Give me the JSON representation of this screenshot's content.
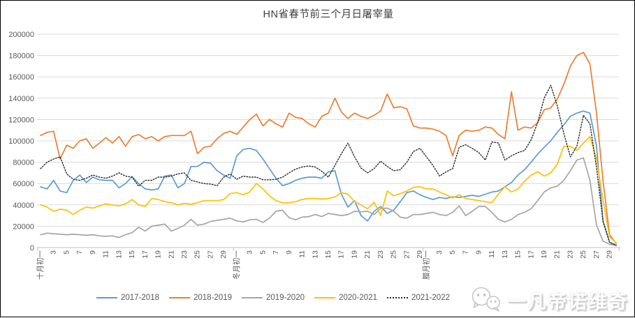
{
  "chart_data": {
    "type": "line",
    "title": "HN省春节前三个月日屠宰量",
    "grid": "horizontal",
    "legend_position": "bottom",
    "y_axis": {
      "min": 0,
      "max": 200000,
      "step": 20000,
      "tick_labels": [
        "0",
        "20000",
        "40000",
        "60000",
        "80000",
        "100000",
        "120000",
        "140000",
        "160000",
        "180000",
        "200000"
      ]
    },
    "x_axis": {
      "months": [
        {
          "first_label": "十月初一",
          "days": 30
        },
        {
          "first_label": "冬月初一",
          "days": 29
        },
        {
          "first_label": "腊月初一",
          "days": 30
        }
      ],
      "tick_positions": [
        0,
        2,
        4,
        6,
        8,
        10,
        12,
        14,
        16,
        18,
        20,
        22,
        24,
        26,
        28,
        30,
        32,
        34,
        36,
        38,
        40,
        42,
        44,
        46,
        48,
        50,
        52,
        54,
        56,
        58,
        59,
        61,
        63,
        65,
        67,
        69,
        71,
        73,
        75,
        77,
        79,
        81,
        83,
        85,
        87
      ],
      "tick_labels": [
        "十月初一",
        "3",
        "5",
        "7",
        "9",
        "11",
        "13",
        "15",
        "17",
        "19",
        "21",
        "23",
        "25",
        "27",
        "29",
        "冬月初一",
        "3",
        "5",
        "7",
        "9",
        "11",
        "13",
        "15",
        "17",
        "19",
        "21",
        "23",
        "25",
        "27",
        "29",
        "腊月初一",
        "3",
        "5",
        "7",
        "9",
        "11",
        "13",
        "15",
        "17",
        "19",
        "21",
        "23",
        "25",
        "27",
        "29"
      ]
    },
    "series": [
      {
        "name": "2017-2018",
        "color": "#5B9BD5",
        "style": "solid",
        "values": [
          57000,
          55000,
          63000,
          53000,
          51500,
          63000,
          68000,
          61000,
          66000,
          63500,
          63000,
          63000,
          56000,
          60000,
          66500,
          60000,
          55000,
          54000,
          55000,
          67000,
          68000,
          56000,
          60000,
          76000,
          76000,
          80000,
          79000,
          72000,
          68000,
          65000,
          86000,
          92000,
          93000,
          91000,
          83000,
          74000,
          65000,
          58000,
          60000,
          63000,
          65000,
          66000,
          66000,
          65000,
          71000,
          72000,
          50000,
          38000,
          44000,
          30000,
          25000,
          34000,
          38500,
          32000,
          35000,
          43000,
          51500,
          53000,
          49500,
          47000,
          45000,
          47000,
          46000,
          47500,
          47000,
          48000,
          49000,
          48000,
          50000,
          52000,
          53000,
          57000,
          61000,
          68000,
          73000,
          80000,
          87500,
          94000,
          100000,
          108000,
          115000,
          123000,
          126000,
          128000,
          126000,
          95000,
          25000,
          5000,
          2500
        ]
      },
      {
        "name": "2018-2019",
        "color": "#ED7D31",
        "style": "solid",
        "values": [
          105000,
          108000,
          109000,
          83000,
          96000,
          93000,
          100000,
          102000,
          93000,
          98000,
          103000,
          98000,
          104000,
          95000,
          104000,
          106000,
          102000,
          104000,
          100000,
          104000,
          105000,
          105000,
          105000,
          109000,
          88000,
          94000,
          95000,
          102000,
          107000,
          109000,
          106000,
          113000,
          120000,
          125000,
          114000,
          120000,
          116000,
          113000,
          126000,
          122000,
          121000,
          116000,
          113000,
          123000,
          126000,
          140000,
          127000,
          121000,
          126000,
          123000,
          121000,
          124000,
          128000,
          144000,
          131000,
          132000,
          130000,
          114000,
          112000,
          112000,
          111000,
          109000,
          105000,
          86000,
          105000,
          110000,
          109000,
          110000,
          113000,
          112000,
          106000,
          102000,
          146000,
          110000,
          113000,
          112000,
          117000,
          129000,
          131000,
          139000,
          153000,
          170000,
          180000,
          183000,
          172000,
          126000,
          62000,
          12000,
          4000
        ]
      },
      {
        "name": "2019-2020",
        "color": "#A5A5A5",
        "style": "solid",
        "values": [
          12000,
          13500,
          13000,
          12500,
          12000,
          12500,
          12000,
          11500,
          12000,
          11000,
          10500,
          11000,
          9500,
          12000,
          14000,
          19000,
          15500,
          20000,
          21000,
          22000,
          15500,
          18000,
          21000,
          26500,
          21000,
          22000,
          24500,
          25500,
          26500,
          27500,
          25000,
          24000,
          26000,
          26500,
          23500,
          27500,
          34000,
          35000,
          28000,
          26000,
          28500,
          29000,
          31000,
          29000,
          32000,
          31000,
          30000,
          31000,
          34000,
          33500,
          34000,
          31000,
          36500,
          37000,
          34000,
          28500,
          27500,
          31000,
          31000,
          32000,
          33000,
          31000,
          30000,
          33000,
          39000,
          30000,
          34000,
          38500,
          38500,
          33000,
          26500,
          24000,
          26500,
          31000,
          33000,
          36500,
          44000,
          52000,
          56000,
          57500,
          63000,
          72000,
          82000,
          84000,
          63000,
          21000,
          6000,
          3000,
          2000
        ]
      },
      {
        "name": "2020-2021",
        "color": "#FFC000",
        "style": "solid",
        "values": [
          40000,
          38000,
          34000,
          36000,
          35000,
          31000,
          35000,
          38000,
          37000,
          39000,
          41000,
          40000,
          39000,
          41000,
          45000,
          40000,
          38500,
          46000,
          45000,
          43000,
          42000,
          40000,
          41500,
          40500,
          42000,
          44000,
          44000,
          44000,
          45000,
          50500,
          51500,
          49500,
          52000,
          60000,
          55000,
          48500,
          44000,
          42000,
          42000,
          43000,
          45000,
          46000,
          46000,
          45500,
          46000,
          47500,
          51500,
          50000,
          43000,
          40000,
          36500,
          42500,
          30000,
          53000,
          48500,
          50500,
          53000,
          56500,
          57000,
          55000,
          55000,
          52000,
          49500,
          46500,
          49500,
          46000,
          45000,
          44000,
          43000,
          42000,
          50000,
          57000,
          52000,
          55000,
          62000,
          68000,
          71000,
          67000,
          70000,
          78000,
          95000,
          95000,
          91000,
          98000,
          104000,
          83000,
          44000,
          10000,
          4500
        ]
      },
      {
        "name": "2021-2022",
        "color": "#262626",
        "style": "dotted",
        "values": [
          74000,
          80000,
          83000,
          85000,
          69000,
          64000,
          63000,
          65000,
          68000,
          66000,
          65000,
          67000,
          70000,
          67000,
          66000,
          57500,
          63000,
          63000,
          66000,
          66000,
          67000,
          69000,
          70000,
          63000,
          61500,
          60000,
          59500,
          58000,
          66000,
          69000,
          64000,
          67000,
          66000,
          66000,
          63500,
          63500,
          64000,
          66000,
          70000,
          73500,
          75500,
          76500,
          75500,
          71500,
          66000,
          77000,
          88000,
          98000,
          85000,
          74500,
          70000,
          74000,
          81000,
          76000,
          72000,
          73000,
          80000,
          90000,
          93000,
          85000,
          77000,
          67000,
          71000,
          74000,
          94000,
          96500,
          93000,
          89000,
          82000,
          99000,
          98000,
          82000,
          86000,
          89000,
          91000,
          101000,
          117000,
          140000,
          152000,
          133000,
          107000,
          85000,
          95000,
          124000,
          116000,
          75000,
          24000,
          5000,
          2000
        ]
      }
    ],
    "colors": {
      "gridline": "#D9D9D9",
      "axis_line": "#BFBFBF",
      "tick_label": "#595959",
      "title": "#404040"
    }
  },
  "watermark": {
    "text": "一凡帝诺维奇",
    "icon": "wechat-chat-bubbles-icon"
  }
}
